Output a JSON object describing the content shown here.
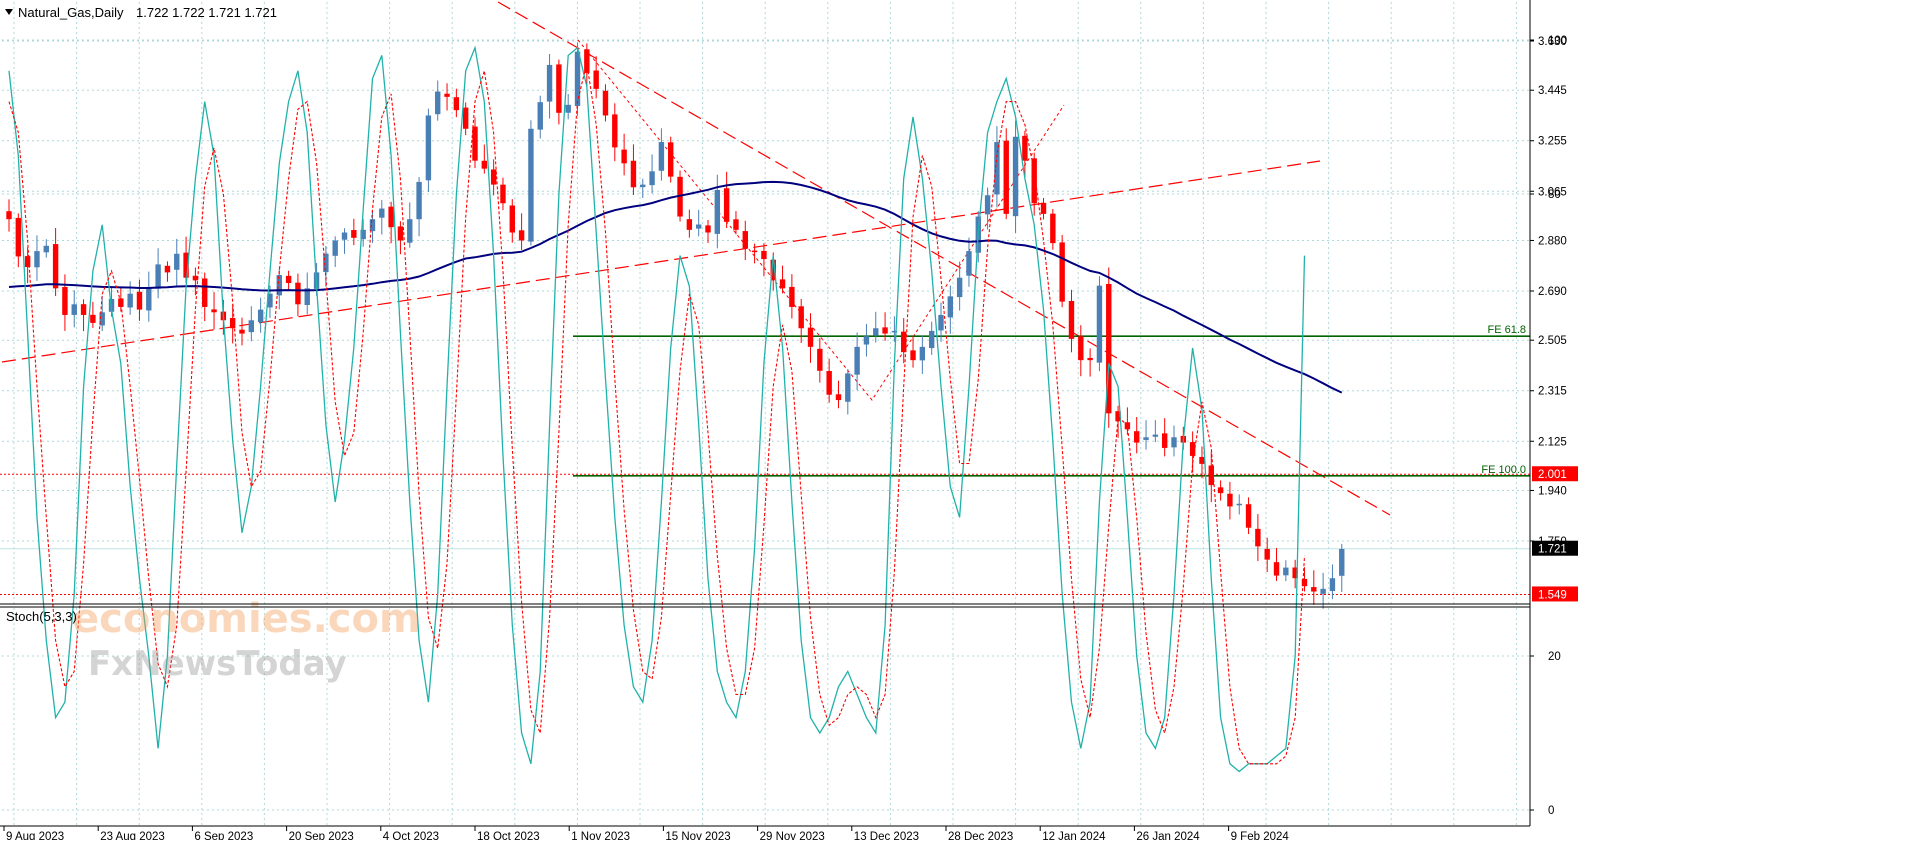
{
  "header": {
    "symbol_line": "Natural_Gas,Daily",
    "ohlc": "1.722 1.722 1.721 1.721"
  },
  "watermark": {
    "brand": "economies.com",
    "sub": "FxNewsToday"
  },
  "colors": {
    "bull": "#4a7fb5",
    "bear": "#ff0000",
    "ma": "#00007f",
    "trend": "#ff0000",
    "fe_line": "#006400",
    "stoch_main": "#20b2aa",
    "stoch_signal": "#ff0000",
    "grid": "#b0d8d8"
  },
  "chart_data": [
    {
      "type": "candlestick",
      "title": "Natural_Gas,Daily",
      "ylim": [
        1.5,
        3.76
      ],
      "y_ticks": [
        "3.630",
        "3.445",
        "3.255",
        "3.065",
        "2.880",
        "2.690",
        "2.505",
        "2.315",
        "2.125",
        "1.940",
        "1.750"
      ],
      "x_ticks": [
        "9 Aug 2023",
        "23 Aug 2023",
        "6 Sep 2023",
        "20 Sep 2023",
        "4 Oct 2023",
        "18 Oct 2023",
        "1 Nov 2023",
        "15 Nov 2023",
        "29 Nov 2023",
        "13 Dec 2023",
        "28 Dec 2023",
        "12 Jan 2024",
        "26 Jan 2024",
        "9 Feb 2024"
      ],
      "closes": [
        2.96,
        2.82,
        2.78,
        2.84,
        2.86,
        2.7,
        2.6,
        2.64,
        2.6,
        2.57,
        2.61,
        2.66,
        2.63,
        2.68,
        2.62,
        2.7,
        2.79,
        2.76,
        2.83,
        2.74,
        2.73,
        2.63,
        2.61,
        2.58,
        2.55,
        2.53,
        2.58,
        2.62,
        2.68,
        2.75,
        2.72,
        2.64,
        2.7,
        2.76,
        2.83,
        2.88,
        2.91,
        2.89,
        2.92,
        2.96,
        3.0,
        2.93,
        2.88,
        2.96,
        3.1,
        3.35,
        3.44,
        3.42,
        3.37,
        3.3,
        3.18,
        3.15,
        3.09,
        3.02,
        2.91,
        2.88,
        3.3,
        3.4,
        3.54,
        3.36,
        3.39,
        3.59,
        3.51,
        3.45,
        3.35,
        3.23,
        3.17,
        3.08,
        3.09,
        3.14,
        3.25,
        3.12,
        2.97,
        2.92,
        2.94,
        2.91,
        3.07,
        2.95,
        2.92,
        2.85,
        2.84,
        2.81,
        2.73,
        2.7,
        2.63,
        2.55,
        2.48,
        2.39,
        2.3,
        2.28,
        2.38,
        2.48,
        2.52,
        2.55,
        2.53,
        2.54,
        2.46,
        2.43,
        2.48,
        2.54,
        2.6,
        2.67,
        2.74,
        2.84,
        2.97,
        3.05,
        3.25,
        2.98,
        3.27,
        3.18,
        3.02,
        2.98,
        2.87,
        2.65,
        2.51,
        2.43,
        2.43,
        2.71,
        2.23,
        2.2,
        2.17,
        2.12,
        2.14,
        2.15,
        2.1,
        2.14,
        2.12,
        2.07,
        2.04,
        1.96,
        1.93,
        1.88,
        1.89,
        1.8,
        1.73,
        1.68,
        1.62,
        1.65,
        1.61,
        1.58,
        1.56,
        1.57,
        1.61,
        1.72
      ],
      "ma_period": 50,
      "reference_lines": [
        {
          "label": "FE 61.8",
          "value": 2.52
        },
        {
          "label": "FE 100.0",
          "value": 1.995
        }
      ],
      "price_markers": [
        {
          "value": 2.001,
          "text": "2.001",
          "style": "red-dotted"
        },
        {
          "value": 1.721,
          "text": "1.721",
          "style": "current"
        },
        {
          "value": 1.549,
          "text": "1.549",
          "style": "red-dotted"
        }
      ]
    },
    {
      "type": "line",
      "title": "Stoch(5,3,3)",
      "ylim": [
        0,
        100
      ],
      "y_ticks": [
        "100",
        "80",
        "20",
        "0"
      ],
      "levels": [
        20,
        80
      ],
      "series": [
        {
          "name": "main",
          "values": [
            96,
            85,
            62,
            38,
            22,
            12,
            14,
            28,
            55,
            70,
            76,
            65,
            58,
            42,
            30,
            20,
            8,
            20,
            45,
            68,
            82,
            92,
            85,
            64,
            48,
            36,
            42,
            55,
            70,
            84,
            92,
            96,
            88,
            68,
            50,
            40,
            48,
            60,
            78,
            95,
            98,
            85,
            62,
            40,
            22,
            14,
            28,
            55,
            80,
            96,
            99,
            92,
            72,
            46,
            24,
            10,
            6,
            18,
            50,
            80,
            98,
            99,
            94,
            75,
            56,
            38,
            24,
            16,
            14,
            22,
            40,
            60,
            72,
            68,
            50,
            30,
            18,
            14,
            12,
            18,
            34,
            58,
            72,
            60,
            40,
            22,
            12,
            10,
            12,
            16,
            18,
            15,
            12,
            10,
            24,
            58,
            82,
            90,
            82,
            70,
            55,
            42,
            38,
            55,
            75,
            88,
            92,
            95,
            90,
            82,
            76,
            65,
            48,
            28,
            14,
            8,
            14,
            40,
            58,
            55,
            38,
            20,
            10,
            8,
            12,
            28,
            48,
            60,
            52,
            30,
            12,
            6,
            5,
            6,
            6,
            6,
            7,
            8,
            20,
            72
          ]
        },
        {
          "name": "signal",
          "values": [
            92,
            88,
            74,
            55,
            38,
            22,
            16,
            18,
            32,
            51,
            67,
            70,
            66,
            55,
            43,
            30,
            19,
            16,
            24,
            44,
            65,
            81,
            86,
            80,
            66,
            49,
            42,
            44,
            56,
            70,
            82,
            91,
            92,
            84,
            69,
            53,
            46,
            49,
            62,
            78,
            90,
            93,
            82,
            62,
            41,
            25,
            21,
            32,
            54,
            77,
            92,
            96,
            88,
            70,
            47,
            27,
            13,
            10,
            25,
            49,
            76,
            92,
            97,
            89,
            75,
            56,
            39,
            26,
            18,
            17,
            25,
            41,
            57,
            67,
            63,
            49,
            33,
            21,
            15,
            15,
            21,
            37,
            55,
            63,
            57,
            41,
            25,
            15,
            11,
            12,
            15,
            16,
            15,
            12,
            15,
            31,
            55,
            77,
            85,
            81,
            69,
            56,
            45,
            45,
            56,
            73,
            85,
            92,
            92,
            89,
            83,
            74,
            63,
            47,
            30,
            17,
            12,
            21,
            37,
            51,
            50,
            38,
            23,
            13,
            10,
            16,
            29,
            45,
            53,
            47,
            31,
            16,
            8,
            6,
            6,
            6,
            6,
            7,
            12,
            33
          ]
        }
      ]
    }
  ]
}
